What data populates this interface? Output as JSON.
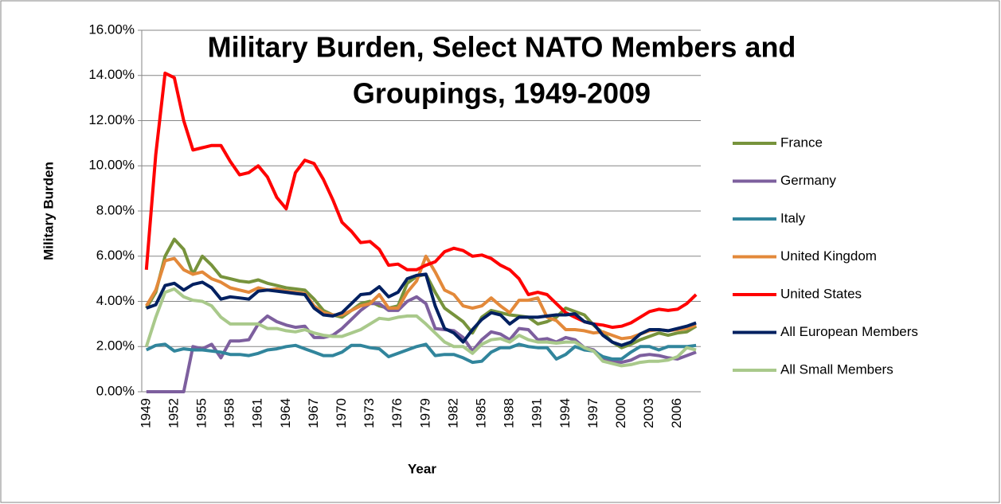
{
  "chart_data": {
    "type": "line",
    "title": [
      "Military Burden, Select NATO Members and",
      "Groupings, 1949-2009"
    ],
    "x_label": "Year",
    "y_label": "Military Burden",
    "categories": [
      "1949",
      null,
      null,
      "1952",
      null,
      null,
      "1955",
      null,
      null,
      "1958",
      null,
      null,
      "1961",
      null,
      null,
      "1964",
      null,
      null,
      "1967",
      null,
      null,
      "1970",
      null,
      null,
      "1973",
      null,
      null,
      "1976",
      null,
      null,
      "1979",
      null,
      null,
      "1982",
      null,
      null,
      "1985",
      null,
      null,
      "1988",
      null,
      null,
      "1991",
      null,
      null,
      "1994",
      null,
      null,
      "1997",
      null,
      null,
      "2000",
      null,
      null,
      "2003",
      null,
      null,
      "2006",
      null,
      null
    ],
    "ylim": [
      0,
      16
    ],
    "yticks": [
      {
        "value": 0,
        "label": "0.00%"
      },
      {
        "value": 2,
        "label": "2.00%"
      },
      {
        "value": 4,
        "label": "4.00%"
      },
      {
        "value": 6,
        "label": "6.00%"
      },
      {
        "value": 8,
        "label": "8.00%"
      },
      {
        "value": 10,
        "label": "10.00%"
      },
      {
        "value": 12,
        "label": "12.00%"
      },
      {
        "value": 14,
        "label": "14.00%"
      },
      {
        "value": 16,
        "label": "16.00%"
      }
    ],
    "grid": true,
    "legend": "right",
    "series": [
      {
        "name": "France",
        "color": "#77933c",
        "values": [
          3.7,
          4.4,
          6.0,
          6.75,
          6.3,
          5.2,
          6.0,
          5.6,
          5.1,
          5.0,
          4.9,
          4.85,
          4.95,
          4.8,
          4.7,
          4.6,
          4.55,
          4.5,
          4.1,
          3.6,
          3.4,
          3.3,
          3.6,
          3.9,
          4.0,
          3.8,
          3.7,
          3.8,
          4.8,
          5.1,
          5.2,
          4.4,
          3.7,
          3.4,
          3.1,
          2.6,
          3.3,
          3.6,
          3.5,
          3.4,
          3.35,
          3.3,
          3.0,
          3.1,
          3.3,
          3.7,
          3.55,
          3.4,
          2.95,
          2.6,
          2.2,
          1.95,
          2.1,
          2.3,
          2.45,
          2.6,
          2.5,
          2.6,
          2.65,
          2.9
        ]
      },
      {
        "name": "Germany",
        "color": "#7d5f9e",
        "values": [
          0,
          0,
          0,
          0,
          0,
          2.0,
          1.9,
          2.1,
          1.5,
          2.25,
          2.25,
          2.3,
          3.0,
          3.35,
          3.1,
          2.95,
          2.85,
          2.9,
          2.4,
          2.4,
          2.5,
          2.8,
          3.2,
          3.6,
          3.9,
          3.9,
          3.6,
          3.6,
          4.0,
          4.2,
          3.9,
          2.8,
          2.75,
          2.7,
          2.4,
          1.8,
          2.3,
          2.65,
          2.55,
          2.3,
          2.8,
          2.75,
          2.3,
          2.35,
          2.2,
          2.4,
          2.3,
          1.95,
          1.85,
          1.5,
          1.35,
          1.3,
          1.4,
          1.6,
          1.65,
          1.6,
          1.5,
          1.45,
          1.6,
          1.75
        ]
      },
      {
        "name": "Italy",
        "color": "#31859c",
        "values": [
          1.85,
          2.05,
          2.1,
          1.8,
          1.9,
          1.85,
          1.85,
          1.8,
          1.75,
          1.65,
          1.65,
          1.6,
          1.7,
          1.85,
          1.9,
          2.0,
          2.05,
          1.9,
          1.75,
          1.6,
          1.6,
          1.75,
          2.05,
          2.05,
          1.95,
          1.9,
          1.55,
          1.7,
          1.85,
          2.0,
          2.1,
          1.6,
          1.65,
          1.65,
          1.5,
          1.3,
          1.35,
          1.75,
          1.95,
          1.95,
          2.1,
          2.0,
          1.95,
          1.95,
          1.45,
          1.65,
          2.0,
          1.85,
          1.8,
          1.55,
          1.45,
          1.45,
          1.75,
          2.0,
          2.0,
          1.85,
          2.0,
          2.0,
          2.0,
          2.05
        ]
      },
      {
        "name": "United Kingdom",
        "color": "#e3893a",
        "values": [
          3.8,
          4.5,
          5.8,
          5.9,
          5.4,
          5.2,
          5.3,
          5.0,
          4.85,
          4.6,
          4.5,
          4.4,
          4.6,
          4.5,
          4.55,
          4.45,
          4.4,
          4.35,
          3.8,
          3.5,
          3.4,
          3.4,
          3.6,
          3.8,
          3.9,
          4.3,
          3.7,
          3.7,
          4.4,
          4.9,
          6.0,
          5.3,
          4.5,
          4.3,
          3.8,
          3.7,
          3.8,
          4.15,
          3.8,
          3.5,
          4.05,
          4.05,
          4.15,
          3.3,
          3.15,
          2.75,
          2.75,
          2.7,
          2.6,
          2.65,
          2.5,
          2.35,
          2.4,
          2.55,
          2.7,
          2.75,
          2.7,
          2.75,
          2.8,
          2.95
        ]
      },
      {
        "name": "United States",
        "color": "#ff0000",
        "values": [
          5.4,
          10.5,
          14.1,
          13.9,
          12,
          10.7,
          10.8,
          10.9,
          10.9,
          10.2,
          9.6,
          9.7,
          10.0,
          9.5,
          8.6,
          8.1,
          9.7,
          10.25,
          10.1,
          9.4,
          8.5,
          7.5,
          7.1,
          6.6,
          6.65,
          6.3,
          5.6,
          5.65,
          5.4,
          5.4,
          5.6,
          5.75,
          6.2,
          6.35,
          6.25,
          6.0,
          6.05,
          5.9,
          5.6,
          5.4,
          5.0,
          4.3,
          4.4,
          4.3,
          3.9,
          3.5,
          3.3,
          3.1,
          3.0,
          2.95,
          2.85,
          2.9,
          3.05,
          3.3,
          3.55,
          3.65,
          3.6,
          3.65,
          3.9,
          4.3
        ]
      },
      {
        "name": "All European Members",
        "color": "#002060",
        "values": [
          3.7,
          3.85,
          4.7,
          4.8,
          4.5,
          4.75,
          4.85,
          4.6,
          4.1,
          4.2,
          4.15,
          4.1,
          4.45,
          4.5,
          4.45,
          4.4,
          4.35,
          4.3,
          3.7,
          3.4,
          3.35,
          3.5,
          3.9,
          4.3,
          4.35,
          4.65,
          4.2,
          4.4,
          5.0,
          5.15,
          5.2,
          3.8,
          2.8,
          2.6,
          2.2,
          2.75,
          3.2,
          3.5,
          3.4,
          3.0,
          3.3,
          3.3,
          3.3,
          3.35,
          3.4,
          3.4,
          3.45,
          3.1,
          3.0,
          2.5,
          2.2,
          2.05,
          2.2,
          2.55,
          2.75,
          2.75,
          2.7,
          2.8,
          2.9,
          3.05
        ]
      },
      {
        "name": "All Small Members",
        "color": "#a9c98b",
        "values": [
          2.0,
          3.3,
          4.4,
          4.55,
          4.2,
          4.05,
          4.0,
          3.8,
          3.3,
          3.0,
          3.0,
          3.0,
          3.0,
          2.8,
          2.8,
          2.7,
          2.65,
          2.75,
          2.6,
          2.5,
          2.45,
          2.45,
          2.6,
          2.75,
          3.0,
          3.25,
          3.2,
          3.3,
          3.35,
          3.35,
          3.0,
          2.6,
          2.2,
          2.0,
          2.0,
          1.7,
          2.1,
          2.3,
          2.35,
          2.2,
          2.5,
          2.3,
          2.2,
          2.2,
          2.15,
          2.2,
          2.2,
          1.95,
          1.8,
          1.35,
          1.25,
          1.15,
          1.2,
          1.3,
          1.35,
          1.35,
          1.4,
          1.55,
          1.95,
          1.85
        ]
      }
    ]
  }
}
